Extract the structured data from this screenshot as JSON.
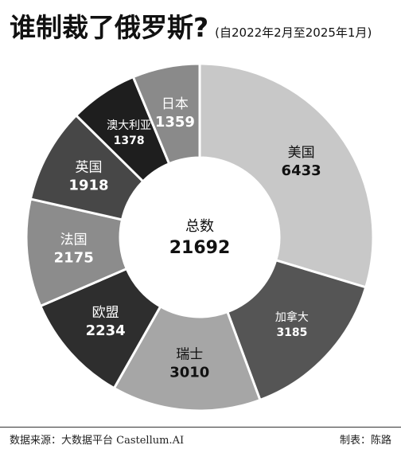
{
  "header": {
    "title": "谁制裁了俄罗斯?",
    "subtitle": "(自2022年2月至2025年1月)"
  },
  "footer": {
    "source": "数据来源：大数据平台 Castellum.AI",
    "credit": "制表：陈路"
  },
  "chart_data": {
    "type": "pie",
    "subtype": "donut",
    "title": "谁制裁了俄罗斯?",
    "subtitle": "(自2022年2月至2025年1月)",
    "center_label": "总数",
    "center_value": "21692",
    "categories": [
      "美国",
      "加拿大",
      "瑞士",
      "欧盟",
      "法国",
      "英国",
      "澳大利亚",
      "日本"
    ],
    "values": [
      6433,
      3185,
      3010,
      2234,
      2175,
      1918,
      1378,
      1359
    ],
    "colors": [
      "#c8c8c8",
      "#555555",
      "#a6a6a6",
      "#2e2e2e",
      "#8c8c8c",
      "#474747",
      "#1e1e1e",
      "#8a8a8a"
    ],
    "label_colors": [
      "#111111",
      "#ffffff",
      "#111111",
      "#ffffff",
      "#ffffff",
      "#ffffff",
      "#ffffff",
      "#ffffff"
    ],
    "legend": "none"
  }
}
